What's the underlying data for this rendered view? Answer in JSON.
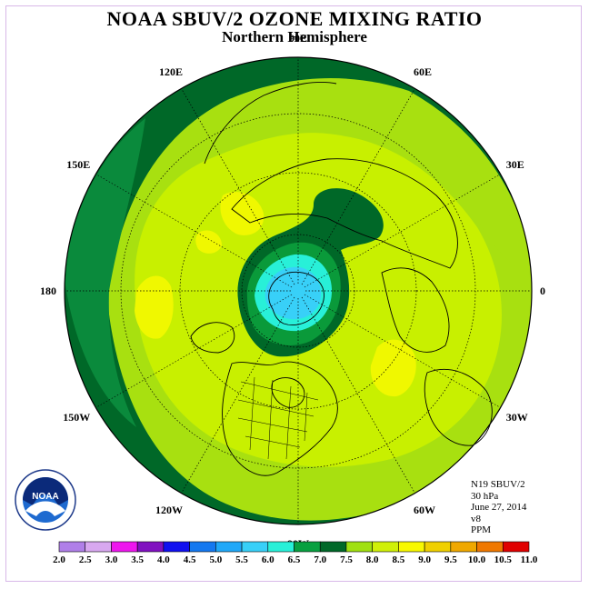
{
  "title": "NOAA SBUV/2 OZONE MIXING RATIO",
  "subtitle": "Northern Hemisphere",
  "longitude_labels": [
    {
      "text": "90E",
      "lon": 90
    },
    {
      "text": "60E",
      "lon": 60
    },
    {
      "text": "30E",
      "lon": 30
    },
    {
      "text": "0",
      "lon": 0
    },
    {
      "text": "30W",
      "lon": -30
    },
    {
      "text": "60W",
      "lon": -60
    },
    {
      "text": "90W",
      "lon": -90
    },
    {
      "text": "120W",
      "lon": -120
    },
    {
      "text": "150W",
      "lon": -150
    },
    {
      "text": "180",
      "lon": 180
    },
    {
      "text": "150E",
      "lon": 150
    },
    {
      "text": "120E",
      "lon": 120
    }
  ],
  "info": {
    "satellite": "N19 SBUV/2",
    "level": "30 hPa",
    "date": "June 27, 2014",
    "version": "v8",
    "units": "PPM"
  },
  "logo": {
    "text": "NOAA",
    "ring_text": "NATIONAL OCEANIC AND ATMOSPHERIC ADMINISTRATION · U.S. DEPARTMENT OF COMMERCE"
  },
  "colorbar": {
    "labels": [
      "2.0",
      "2.5",
      "3.0",
      "3.5",
      "4.0",
      "4.5",
      "5.0",
      "5.5",
      "6.0",
      "6.5",
      "7.0",
      "7.5",
      "8.0",
      "8.5",
      "9.0",
      "9.5",
      "10.0",
      "10.5",
      "11.0"
    ],
    "colors": [
      "#b07fe8",
      "#d8a8f0",
      "#ee16ee",
      "#8010c0",
      "#1010f0",
      "#1478f0",
      "#20a8f8",
      "#38d0f8",
      "#28f0d8",
      "#08a040",
      "#006828",
      "#a0e010",
      "#d0f008",
      "#f8f800",
      "#f0d000",
      "#f0a800",
      "#f07800",
      "#e00000",
      "#805040"
    ]
  },
  "map_colors": {
    "ocean_edge": "#4aa632",
    "dark_green": "#006828",
    "mid_green": "#0a8a3c",
    "yellow_green": "#c8f000",
    "lime": "#a8e010",
    "pale_yellow": "#e8f800",
    "yellow": "#fff800",
    "cyan": "#28f0d8",
    "light_cyan": "#68f8f0"
  }
}
